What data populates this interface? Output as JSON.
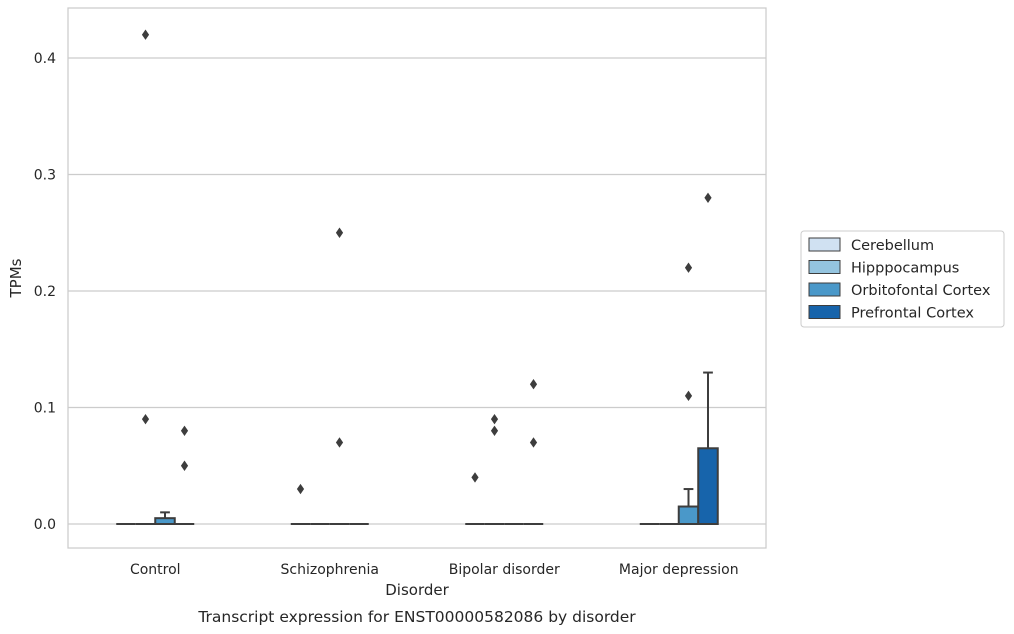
{
  "chart_data": {
    "type": "boxplot",
    "xlabel": "Disorder",
    "ylabel": "TPMs",
    "caption": "Transcript expression for ENST00000582086 by disorder",
    "categories": [
      "Control",
      "Schizophrenia",
      "Bipolar disorder",
      "Major depression"
    ],
    "ylim": [
      -0.02,
      0.4416
    ],
    "yticks": [
      0.0,
      0.1,
      0.2,
      0.3,
      0.4
    ],
    "ytick_labels": [
      "0.0",
      "0.1",
      "0.2",
      "0.3",
      "0.4"
    ],
    "grid": "horizontal",
    "legend_placement": "center-right, outside plot",
    "series": [
      {
        "name": "Cerebellum",
        "color": "#d0e1f2",
        "boxes": [
          {
            "q1": 0,
            "median": 0,
            "q3": 0,
            "whisker_low": 0,
            "whisker_high": 0,
            "fliers": []
          },
          {
            "q1": 0,
            "median": 0,
            "q3": 0,
            "whisker_low": 0,
            "whisker_high": 0,
            "fliers": [
              0.03
            ]
          },
          {
            "q1": 0,
            "median": 0,
            "q3": 0,
            "whisker_low": 0,
            "whisker_high": 0,
            "fliers": [
              0.04
            ]
          },
          {
            "q1": 0,
            "median": 0,
            "q3": 0,
            "whisker_low": 0,
            "whisker_high": 0,
            "fliers": []
          }
        ]
      },
      {
        "name": "Hipppocampus",
        "color": "#94c4df",
        "boxes": [
          {
            "q1": 0,
            "median": 0,
            "q3": 0,
            "whisker_low": 0,
            "whisker_high": 0,
            "fliers": [
              0.42,
              0.09
            ]
          },
          {
            "q1": 0,
            "median": 0,
            "q3": 0,
            "whisker_low": 0,
            "whisker_high": 0,
            "fliers": []
          },
          {
            "q1": 0,
            "median": 0,
            "q3": 0,
            "whisker_low": 0,
            "whisker_high": 0,
            "fliers": [
              0.09,
              0.08
            ]
          },
          {
            "q1": 0,
            "median": 0,
            "q3": 0,
            "whisker_low": 0,
            "whisker_high": 0,
            "fliers": []
          }
        ]
      },
      {
        "name": "Orbitofontal Cortex",
        "color": "#4a98c9",
        "boxes": [
          {
            "q1": 0,
            "median": 0,
            "q3": 0.005,
            "whisker_low": 0,
            "whisker_high": 0.01,
            "fliers": []
          },
          {
            "q1": 0,
            "median": 0,
            "q3": 0,
            "whisker_low": 0,
            "whisker_high": 0,
            "fliers": [
              0.25,
              0.07
            ]
          },
          {
            "q1": 0,
            "median": 0,
            "q3": 0,
            "whisker_low": 0,
            "whisker_high": 0,
            "fliers": []
          },
          {
            "q1": 0,
            "median": 0,
            "q3": 0.015,
            "whisker_low": 0,
            "whisker_high": 0.03,
            "fliers": [
              0.22,
              0.11
            ]
          }
        ]
      },
      {
        "name": "Prefrontal Cortex",
        "color": "#1764ab",
        "boxes": [
          {
            "q1": 0,
            "median": 0,
            "q3": 0,
            "whisker_low": 0,
            "whisker_high": 0,
            "fliers": [
              0.08,
              0.05
            ]
          },
          {
            "q1": 0,
            "median": 0,
            "q3": 0,
            "whisker_low": 0,
            "whisker_high": 0,
            "fliers": []
          },
          {
            "q1": 0,
            "median": 0,
            "q3": 0,
            "whisker_low": 0,
            "whisker_high": 0,
            "fliers": [
              0.12,
              0.07
            ]
          },
          {
            "q1": 0,
            "median": 0,
            "q3": 0.065,
            "whisker_low": 0,
            "whisker_high": 0.13,
            "fliers": [
              0.28
            ]
          }
        ]
      }
    ]
  }
}
